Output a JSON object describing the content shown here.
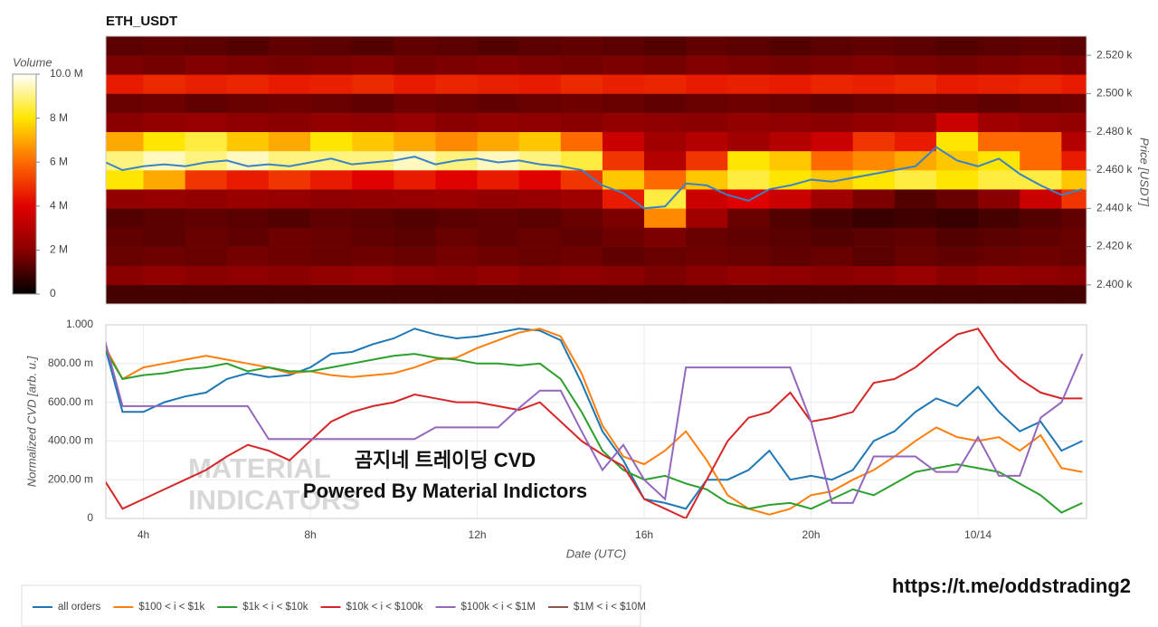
{
  "chart_data": [
    {
      "type": "heatmap",
      "title": "ETH_USDT",
      "colorbar_title": "Volume",
      "y_label": "Price [USDT]",
      "colorscale": [
        "#000000",
        "#8a0000",
        "#e00000",
        "#ff6a00",
        "#ffe600",
        "#ffffff"
      ],
      "zlim": [
        0,
        10
      ],
      "zticks": [
        0,
        {
          "value": 2,
          "label": "2 M"
        },
        {
          "value": 4,
          "label": "4 M"
        },
        {
          "value": 6,
          "label": "6 M"
        },
        {
          "value": 8,
          "label": "8 M"
        },
        {
          "value": 10,
          "label": "10.0 M"
        }
      ],
      "xlim": [
        3.1,
        26.6
      ],
      "ylim": [
        2390,
        2530
      ],
      "yticks": [
        {
          "value": 2400,
          "label": "2.400 k"
        },
        {
          "value": 2420,
          "label": "2.420 k"
        },
        {
          "value": 2440,
          "label": "2.440 k"
        },
        {
          "value": 2460,
          "label": "2.460 k"
        },
        {
          "value": 2480,
          "label": "2.480 k"
        },
        {
          "value": 2500,
          "label": "2.500 k"
        },
        {
          "value": 2520,
          "label": "2.520 k"
        }
      ],
      "x_edges": [
        3.1,
        4,
        5,
        6,
        7,
        8,
        9,
        10,
        11,
        12,
        13,
        14,
        15,
        16,
        17,
        18,
        19,
        20,
        21,
        22,
        23,
        24,
        25,
        26,
        26.6
      ],
      "y_edges": [
        2390,
        2400,
        2410,
        2420,
        2430,
        2440,
        2450,
        2460,
        2470,
        2480,
        2490,
        2500,
        2510,
        2520,
        2530
      ],
      "z": [
        [
          1,
          1,
          1,
          1,
          1,
          1,
          1,
          1,
          1,
          1,
          1,
          1,
          1,
          1,
          1,
          1,
          1,
          1,
          1,
          1,
          1,
          1,
          1,
          1
        ],
        [
          2,
          2.2,
          2,
          2.1,
          2,
          2.2,
          2.3,
          2.1,
          2,
          2.2,
          2,
          2.1,
          2,
          1.8,
          2,
          2.2,
          2.1,
          2,
          2.1,
          2.3,
          2,
          2.2,
          2.1,
          2
        ],
        [
          1.5,
          1.6,
          1.5,
          1.7,
          1.6,
          1.5,
          1.6,
          1.5,
          1.7,
          1.6,
          1.5,
          1.6,
          1.4,
          1.5,
          1.6,
          1.5,
          1.4,
          1.5,
          1.3,
          1.5,
          1.4,
          1.5,
          1.6,
          1.5
        ],
        [
          1.4,
          1.3,
          1.5,
          1.4,
          1.6,
          1.5,
          1.4,
          1.3,
          1.5,
          1.4,
          1.5,
          1.4,
          1.6,
          1.8,
          1.5,
          1.4,
          1.3,
          1.2,
          1.3,
          1.4,
          1.2,
          1.3,
          1.4,
          1.5
        ],
        [
          1.2,
          1.3,
          1.4,
          1.3,
          1.2,
          1.4,
          1.3,
          1.2,
          1.3,
          1.4,
          1.3,
          1.5,
          1.8,
          6.5,
          2.5,
          1.5,
          1.2,
          1,
          0.8,
          0.9,
          0.8,
          1,
          1.2,
          1.4
        ],
        [
          2.2,
          2.3,
          2.2,
          2.4,
          2.3,
          2.1,
          2.2,
          2.3,
          2.4,
          2.2,
          2.3,
          2.5,
          4.5,
          8.5,
          3.5,
          4,
          3.5,
          2.5,
          1.8,
          1.2,
          1.5,
          2,
          3.5,
          5
        ],
        [
          8,
          7,
          5,
          4.5,
          5,
          4.5,
          4,
          4.5,
          4,
          4.5,
          4,
          5,
          7.5,
          6,
          7.5,
          8.5,
          8,
          7.5,
          8,
          8.5,
          8,
          8.5,
          8.5,
          7.5
        ],
        [
          9,
          9.5,
          9,
          9.5,
          9,
          9,
          9,
          9.5,
          9,
          9.5,
          9,
          8.5,
          5,
          3,
          5,
          8,
          7.5,
          6,
          6.5,
          7,
          7.5,
          8,
          6,
          4.5
        ],
        [
          7,
          8,
          8.5,
          7.5,
          7,
          8,
          7.5,
          7,
          6.5,
          7,
          7.5,
          6,
          3.5,
          2.5,
          3,
          2.5,
          3,
          3.5,
          5,
          4.5,
          8,
          6,
          6,
          3
        ],
        [
          2,
          2.2,
          2.3,
          2.1,
          2,
          2.2,
          2.1,
          2.3,
          2,
          2.2,
          2.1,
          2,
          2.2,
          2.1,
          2,
          2.2,
          2.1,
          2,
          2.2,
          2.3,
          3.5,
          2.5,
          2.3,
          2.2
        ],
        [
          1.5,
          1.6,
          1.4,
          1.5,
          1.6,
          1.5,
          1.4,
          1.6,
          1.5,
          1.4,
          1.5,
          1.6,
          1.5,
          1.4,
          1.5,
          1.6,
          1.5,
          1.4,
          1.5,
          1.6,
          1.5,
          1.4,
          1.5,
          1.6
        ],
        [
          4.5,
          4.8,
          4.6,
          4.7,
          4.5,
          4.6,
          4.8,
          4.5,
          4.7,
          4.6,
          4.5,
          4.8,
          4.6,
          4.7,
          4.5,
          4.6,
          4.5,
          4.7,
          4.6,
          4.8,
          4.5,
          4.6,
          4.7,
          4.5
        ],
        [
          1.8,
          1.7,
          1.9,
          1.8,
          1.7,
          1.8,
          1.9,
          1.7,
          1.8,
          1.9,
          1.8,
          1.7,
          1.8,
          1.7,
          1.9,
          1.8,
          1.7,
          1.8,
          1.9,
          1.8,
          1.7,
          1.8,
          1.9,
          1.8
        ],
        [
          1.3,
          1.4,
          1.3,
          1.2,
          1.4,
          1.3,
          1.2,
          1.4,
          1.3,
          1.2,
          1.3,
          1.4,
          1.3,
          1.2,
          1.4,
          1.3,
          1.2,
          1.3,
          1.4,
          1.3,
          1.2,
          1.3,
          1.4,
          1.3
        ]
      ],
      "line": {
        "color": "#3b82c4",
        "x": [
          3,
          3.5,
          4,
          4.5,
          5,
          5.5,
          6,
          6.5,
          7,
          7.5,
          8,
          8.5,
          9,
          9.5,
          10,
          10.5,
          11,
          11.5,
          12,
          12.5,
          13,
          13.5,
          14,
          14.5,
          15,
          15.5,
          16,
          16.5,
          17,
          17.5,
          18,
          18.5,
          19,
          19.5,
          20,
          20.5,
          21,
          21.5,
          22,
          22.5,
          23,
          23.5,
          24,
          24.5,
          25,
          25.5,
          26,
          26.5
        ],
        "values": [
          2465,
          2460,
          2462,
          2463,
          2462,
          2464,
          2465,
          2462,
          2463,
          2462,
          2464,
          2466,
          2463,
          2464,
          2465,
          2467,
          2463,
          2465,
          2466,
          2464,
          2465,
          2463,
          2462,
          2460,
          2452,
          2448,
          2440,
          2441,
          2453,
          2452,
          2447,
          2444,
          2450,
          2452,
          2455,
          2454,
          2456,
          2458,
          2460,
          2462,
          2472,
          2465,
          2462,
          2466,
          2458,
          2452,
          2447,
          2450
        ]
      }
    },
    {
      "type": "line",
      "x_label": "Date (UTC)",
      "y_label": "Normalized CVD [arb. u.]",
      "xlim": [
        3.1,
        26.6
      ],
      "ylim": [
        0,
        1
      ],
      "xticks": [
        {
          "value": 4,
          "label": "4h"
        },
        {
          "value": 8,
          "label": "8h"
        },
        {
          "value": 12,
          "label": "12h"
        },
        {
          "value": 16,
          "label": "16h"
        },
        {
          "value": 20,
          "label": "20h"
        },
        {
          "value": 24,
          "label": "10/14"
        }
      ],
      "yticks": [
        0,
        {
          "value": 0.2,
          "label": "200.00 m"
        },
        {
          "value": 0.4,
          "label": "400.00 m"
        },
        {
          "value": 0.6,
          "label": "600.00 m"
        },
        {
          "value": 0.8,
          "label": "800.00 m"
        },
        {
          "value": 1,
          "label": "1.000"
        }
      ],
      "grid": true,
      "watermark": [
        "MATERIAL",
        "INDICATORS"
      ],
      "annotations": [
        "곰지네 트레이딩 CVD",
        "Powered By Material Indictors"
      ],
      "x": [
        3,
        3.5,
        4,
        4.5,
        5,
        5.5,
        6,
        6.5,
        7,
        7.5,
        8,
        8.5,
        9,
        9.5,
        10,
        10.5,
        11,
        11.5,
        12,
        12.5,
        13,
        13.5,
        14,
        14.5,
        15,
        15.5,
        16,
        16.5,
        17,
        17.5,
        18,
        18.5,
        19,
        19.5,
        20,
        20.5,
        21,
        21.5,
        22,
        22.5,
        23,
        23.5,
        24,
        24.5,
        25,
        25.5,
        26,
        26.5
      ],
      "series": [
        {
          "name": "all orders",
          "color": "#1f77b4",
          "values": [
            0.95,
            0.55,
            0.55,
            0.6,
            0.63,
            0.65,
            0.72,
            0.75,
            0.73,
            0.74,
            0.78,
            0.85,
            0.86,
            0.9,
            0.93,
            0.98,
            0.95,
            0.93,
            0.94,
            0.96,
            0.98,
            0.97,
            0.92,
            0.7,
            0.45,
            0.3,
            0.1,
            0.08,
            0.05,
            0.2,
            0.2,
            0.25,
            0.35,
            0.2,
            0.22,
            0.2,
            0.25,
            0.4,
            0.45,
            0.55,
            0.62,
            0.58,
            0.68,
            0.55,
            0.45,
            0.5,
            0.35,
            0.4
          ]
        },
        {
          "name": "$100 < i < $1k",
          "color": "#ff7f0e",
          "values": [
            0.92,
            0.72,
            0.78,
            0.8,
            0.82,
            0.84,
            0.82,
            0.8,
            0.78,
            0.75,
            0.76,
            0.74,
            0.73,
            0.74,
            0.75,
            0.78,
            0.82,
            0.83,
            0.88,
            0.92,
            0.96,
            0.98,
            0.94,
            0.75,
            0.48,
            0.32,
            0.28,
            0.35,
            0.45,
            0.3,
            0.12,
            0.05,
            0.02,
            0.05,
            0.12,
            0.14,
            0.2,
            0.25,
            0.32,
            0.4,
            0.47,
            0.42,
            0.4,
            0.42,
            0.35,
            0.43,
            0.26,
            0.24
          ]
        },
        {
          "name": "$1k < i < $10k",
          "color": "#2ca02c",
          "values": [
            0.9,
            0.72,
            0.74,
            0.75,
            0.77,
            0.78,
            0.8,
            0.76,
            0.78,
            0.76,
            0.76,
            0.78,
            0.8,
            0.82,
            0.84,
            0.85,
            0.83,
            0.82,
            0.8,
            0.8,
            0.79,
            0.8,
            0.72,
            0.55,
            0.35,
            0.25,
            0.2,
            0.22,
            0.18,
            0.15,
            0.08,
            0.05,
            0.07,
            0.08,
            0.05,
            0.1,
            0.15,
            0.12,
            0.18,
            0.24,
            0.26,
            0.28,
            0.26,
            0.24,
            0.18,
            0.12,
            0.03,
            0.08
          ]
        },
        {
          "name": "$10k < i < $100k",
          "color": "#d62728",
          "values": [
            0.22,
            0.05,
            0.1,
            0.15,
            0.2,
            0.25,
            0.32,
            0.38,
            0.35,
            0.3,
            0.4,
            0.5,
            0.55,
            0.58,
            0.6,
            0.64,
            0.62,
            0.6,
            0.6,
            0.58,
            0.56,
            0.6,
            0.5,
            0.4,
            0.33,
            0.27,
            0.1,
            0.05,
            0,
            0.2,
            0.4,
            0.52,
            0.55,
            0.65,
            0.5,
            0.52,
            0.55,
            0.7,
            0.72,
            0.78,
            0.87,
            0.95,
            0.98,
            0.82,
            0.72,
            0.65,
            0.62,
            0.62
          ]
        },
        {
          "name": "$100k < i < $1M",
          "color": "#9467bd",
          "values": [
            0.98,
            0.58,
            0.58,
            0.58,
            0.58,
            0.58,
            0.58,
            0.58,
            0.41,
            0.41,
            0.41,
            0.41,
            0.41,
            0.41,
            0.41,
            0.41,
            0.47,
            0.47,
            0.47,
            0.47,
            0.57,
            0.66,
            0.66,
            0.45,
            0.25,
            0.38,
            0.2,
            0.1,
            0.78,
            0.78,
            0.78,
            0.78,
            0.78,
            0.78,
            0.5,
            0.08,
            0.08,
            0.32,
            0.32,
            0.32,
            0.24,
            0.24,
            0.42,
            0.22,
            0.22,
            0.52,
            0.6,
            0.85
          ]
        },
        {
          "name": "$1M < i < $10M",
          "color": "#8c564b",
          "values": [
            null,
            null,
            null,
            null,
            null,
            null,
            null,
            null,
            null,
            null,
            null,
            null,
            null,
            null,
            null,
            null,
            null,
            null,
            null,
            null,
            null,
            null,
            null,
            null,
            null,
            null,
            null,
            null,
            null,
            null,
            null,
            null,
            null,
            null,
            null,
            null,
            null,
            null,
            null,
            null,
            null,
            null,
            null,
            null,
            null,
            null,
            null,
            null
          ]
        }
      ]
    }
  ],
  "link": "https://t.me/oddstrading2"
}
